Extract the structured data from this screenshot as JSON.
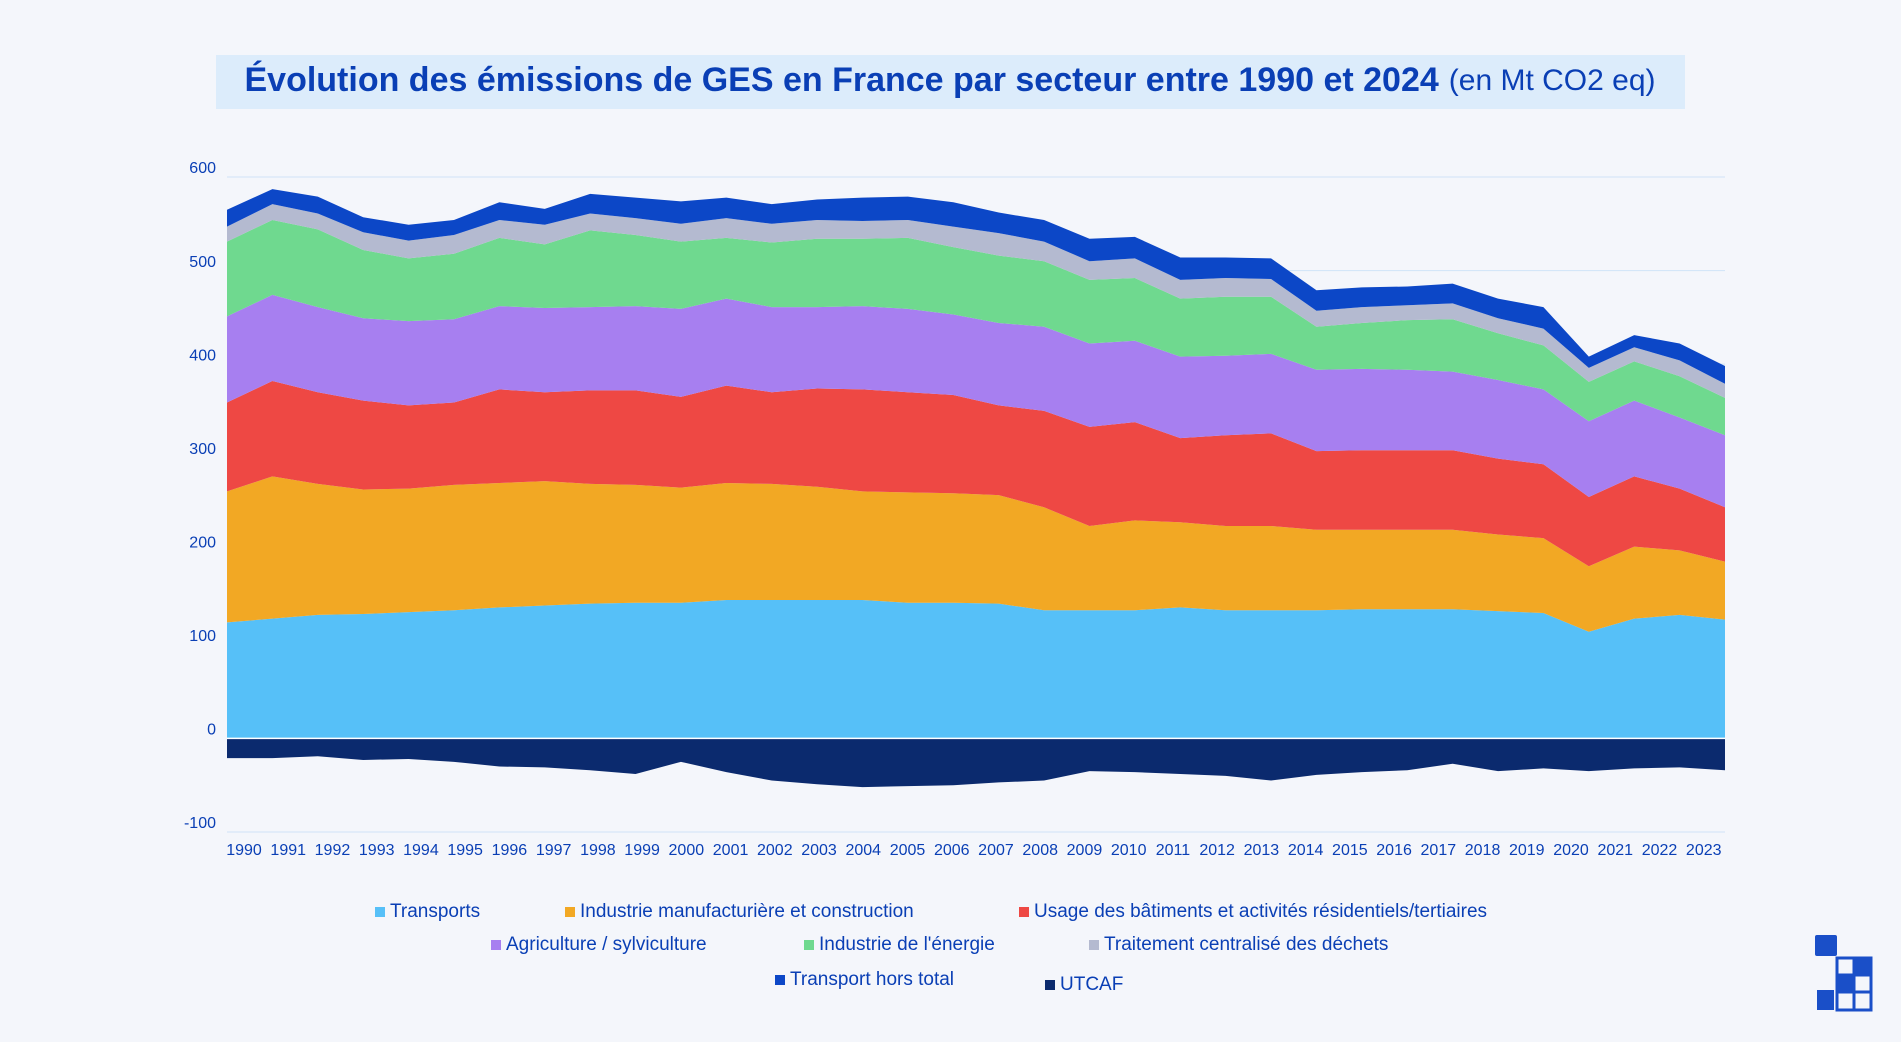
{
  "chart_data": {
    "type": "stacked-area",
    "title": "Évolution des émissions de GES en France par secteur entre 1990 et 2024",
    "subtitle": "(en Mt CO2 eq)",
    "categories": [
      "1990",
      "1991",
      "1992",
      "1993",
      "1994",
      "1995",
      "1996",
      "1997",
      "1998",
      "1999",
      "2000",
      "2001",
      "2002",
      "2003",
      "2004",
      "2005",
      "2006",
      "2007",
      "2008",
      "2009",
      "2010",
      "2011",
      "2012",
      "2013",
      "2014",
      "2015",
      "2016",
      "2017",
      "2018",
      "2019",
      "2020",
      "2021",
      "2022",
      "2023"
    ],
    "ylim": [
      -100,
      600
    ],
    "yticks": [
      600,
      500,
      400,
      300,
      200,
      100,
      0,
      -100
    ],
    "grid": true,
    "legend": "bottom",
    "series": [
      {
        "name": "Transports",
        "color": "#56c0f8",
        "values": [
          124,
          128,
          132,
          133,
          135,
          137,
          140,
          142,
          144,
          145,
          145,
          148,
          148,
          148,
          148,
          145,
          145,
          144,
          137,
          137,
          137,
          140,
          137,
          137,
          137,
          138,
          138,
          138,
          136,
          134,
          114,
          128,
          132,
          127
        ]
      },
      {
        "name": "Industrie manufacturière et construction",
        "color": "#f2a824",
        "values": [
          140,
          152,
          140,
          133,
          132,
          134,
          133,
          133,
          128,
          126,
          123,
          125,
          124,
          121,
          116,
          118,
          117,
          116,
          110,
          90,
          96,
          91,
          90,
          90,
          86,
          85,
          85,
          85,
          82,
          80,
          70,
          77,
          69,
          62
        ]
      },
      {
        "name": "Usage des bâtiments et activités résidentiels/tertiaires",
        "color": "#ee4844",
        "values": [
          95,
          102,
          98,
          95,
          89,
          88,
          100,
          95,
          100,
          101,
          97,
          104,
          98,
          105,
          109,
          107,
          105,
          96,
          103,
          106,
          105,
          90,
          97,
          99,
          84,
          85,
          85,
          85,
          81,
          79,
          74,
          75,
          66,
          58
        ]
      },
      {
        "name": "Agriculture / sylviculture",
        "color": "#a77ff0",
        "values": [
          92,
          92,
          91,
          88,
          90,
          89,
          89,
          90,
          89,
          90,
          94,
          93,
          91,
          87,
          89,
          89,
          86,
          88,
          90,
          89,
          87,
          87,
          85,
          85,
          87,
          87,
          86,
          84,
          84,
          80,
          81,
          81,
          76,
          77
        ]
      },
      {
        "name": "Industrie de l'énergie",
        "color": "#6fd98f",
        "values": [
          80,
          80,
          83,
          73,
          67,
          70,
          73,
          68,
          82,
          76,
          72,
          65,
          69,
          73,
          72,
          76,
          72,
          72,
          70,
          68,
          67,
          62,
          63,
          61,
          46,
          49,
          53,
          56,
          50,
          47,
          42,
          42,
          44,
          40
        ]
      },
      {
        "name": "Traitement centralisé des déchets",
        "color": "#b4bad0",
        "values": [
          16,
          17,
          17,
          19,
          19,
          20,
          19,
          21,
          18,
          18,
          19,
          21,
          20,
          20,
          19,
          19,
          22,
          24,
          21,
          20,
          21,
          20,
          20,
          19,
          17,
          17,
          16,
          17,
          16,
          18,
          15,
          15,
          17,
          15
        ]
      },
      {
        "name": "Transport hors total",
        "color": "#0c47c7",
        "values": [
          18,
          16,
          18,
          16,
          17,
          16,
          19,
          17,
          21,
          22,
          24,
          22,
          21,
          22,
          25,
          25,
          26,
          22,
          23,
          24,
          23,
          24,
          22,
          22,
          22,
          21,
          20,
          21,
          21,
          23,
          12,
          13,
          18,
          19
        ]
      },
      {
        "name": "UTCAF",
        "color": "#0b2a6e",
        "values": [
          -21,
          -21,
          -19,
          -23,
          -22,
          -25,
          -30,
          -31,
          -34,
          -38,
          -25,
          -36,
          -45,
          -49,
          -52,
          -51,
          -50,
          -47,
          -45,
          -35,
          -36,
          -38,
          -40,
          -45,
          -39,
          -36,
          -34,
          -27,
          -35,
          -32,
          -35,
          -32,
          -31,
          -34
        ]
      }
    ]
  }
}
